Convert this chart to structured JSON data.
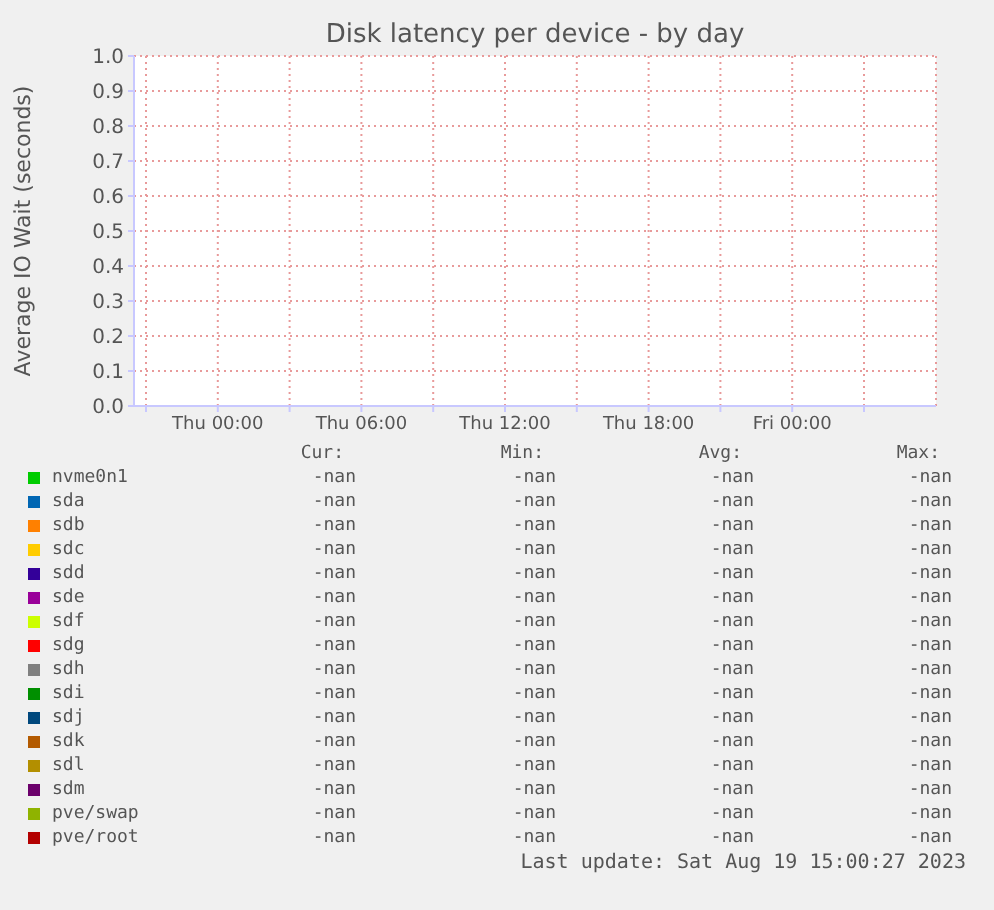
{
  "chart_data": {
    "type": "line",
    "title": "Disk latency per device - by day",
    "ylabel": "Average IO Wait (seconds)",
    "categories": [
      null,
      "Thu 00:00",
      null,
      "Thu 06:00",
      null,
      "Thu 12:00",
      null,
      "Thu 18:00",
      null,
      "Fri 00:00",
      null
    ],
    "ylim": [
      0,
      1
    ],
    "yticks": [
      {
        "value": 0,
        "label": "0.0"
      },
      {
        "value": 0.1,
        "label": "0.1"
      },
      {
        "value": 0.2,
        "label": "0.2"
      },
      {
        "value": 0.3,
        "label": "0.3"
      },
      {
        "value": 0.4,
        "label": "0.4"
      },
      {
        "value": 0.5,
        "label": "0.5"
      },
      {
        "value": 0.6,
        "label": "0.6"
      },
      {
        "value": 0.7,
        "label": "0.7"
      },
      {
        "value": 0.8,
        "label": "0.8"
      },
      {
        "value": 0.9,
        "label": "0.9"
      },
      {
        "value": 1,
        "label": "1.0"
      }
    ],
    "grid": true,
    "legend": "bottom",
    "series": [
      {
        "name": "nvme0n1",
        "color": "#00cc00",
        "values": [
          null,
          null,
          null,
          null,
          null,
          null,
          null,
          null,
          null,
          null,
          null
        ]
      },
      {
        "name": "sda",
        "color": "#0066b3",
        "values": [
          null,
          null,
          null,
          null,
          null,
          null,
          null,
          null,
          null,
          null,
          null
        ]
      },
      {
        "name": "sdb",
        "color": "#ff8000",
        "values": [
          null,
          null,
          null,
          null,
          null,
          null,
          null,
          null,
          null,
          null,
          null
        ]
      },
      {
        "name": "sdc",
        "color": "#ffcc00",
        "values": [
          null,
          null,
          null,
          null,
          null,
          null,
          null,
          null,
          null,
          null,
          null
        ]
      },
      {
        "name": "sdd",
        "color": "#330099",
        "values": [
          null,
          null,
          null,
          null,
          null,
          null,
          null,
          null,
          null,
          null,
          null
        ]
      },
      {
        "name": "sde",
        "color": "#990099",
        "values": [
          null,
          null,
          null,
          null,
          null,
          null,
          null,
          null,
          null,
          null,
          null
        ]
      },
      {
        "name": "sdf",
        "color": "#ccff00",
        "values": [
          null,
          null,
          null,
          null,
          null,
          null,
          null,
          null,
          null,
          null,
          null
        ]
      },
      {
        "name": "sdg",
        "color": "#ff0000",
        "values": [
          null,
          null,
          null,
          null,
          null,
          null,
          null,
          null,
          null,
          null,
          null
        ]
      },
      {
        "name": "sdh",
        "color": "#808080",
        "values": [
          null,
          null,
          null,
          null,
          null,
          null,
          null,
          null,
          null,
          null,
          null
        ]
      },
      {
        "name": "sdi",
        "color": "#008f00",
        "values": [
          null,
          null,
          null,
          null,
          null,
          null,
          null,
          null,
          null,
          null,
          null
        ]
      },
      {
        "name": "sdj",
        "color": "#00487d",
        "values": [
          null,
          null,
          null,
          null,
          null,
          null,
          null,
          null,
          null,
          null,
          null
        ]
      },
      {
        "name": "sdk",
        "color": "#b35a00",
        "values": [
          null,
          null,
          null,
          null,
          null,
          null,
          null,
          null,
          null,
          null,
          null
        ]
      },
      {
        "name": "sdl",
        "color": "#b38f00",
        "values": [
          null,
          null,
          null,
          null,
          null,
          null,
          null,
          null,
          null,
          null,
          null
        ]
      },
      {
        "name": "sdm",
        "color": "#6b006b",
        "values": [
          null,
          null,
          null,
          null,
          null,
          null,
          null,
          null,
          null,
          null,
          null
        ]
      },
      {
        "name": "pve/swap",
        "color": "#8fb300",
        "values": [
          null,
          null,
          null,
          null,
          null,
          null,
          null,
          null,
          null,
          null,
          null
        ]
      },
      {
        "name": "pve/root",
        "color": "#b30000",
        "values": [
          null,
          null,
          null,
          null,
          null,
          null,
          null,
          null,
          null,
          null,
          null
        ]
      }
    ],
    "annotations": [
      "Cur:",
      "Min:",
      "Avg:",
      "Max:",
      "-nan",
      "-nan",
      "-nan",
      "-nan",
      "-nan",
      "-nan",
      "-nan",
      "-nan",
      "-nan",
      "-nan",
      "-nan",
      "-nan",
      "-nan",
      "-nan",
      "-nan",
      "-nan",
      "-nan",
      "-nan",
      "-nan",
      "-nan",
      "-nan",
      "-nan",
      "-nan",
      "-nan",
      "-nan",
      "-nan",
      "-nan",
      "-nan",
      "-nan",
      "-nan",
      "-nan",
      "-nan",
      "-nan",
      "-nan",
      "-nan",
      "-nan",
      "-nan",
      "-nan",
      "-nan",
      "-nan",
      "-nan",
      "-nan",
      "-nan",
      "-nan",
      "-nan",
      "-nan",
      "-nan",
      "-nan",
      "-nan",
      "-nan",
      "-nan",
      "-nan",
      "-nan",
      "-nan",
      "-nan",
      "-nan",
      "-nan",
      "-nan",
      "-nan",
      "-nan",
      "-nan",
      "-nan",
      "-nan",
      "-nan",
      "Last update: Sat Aug 19 15:00:27 2023"
    ]
  }
}
